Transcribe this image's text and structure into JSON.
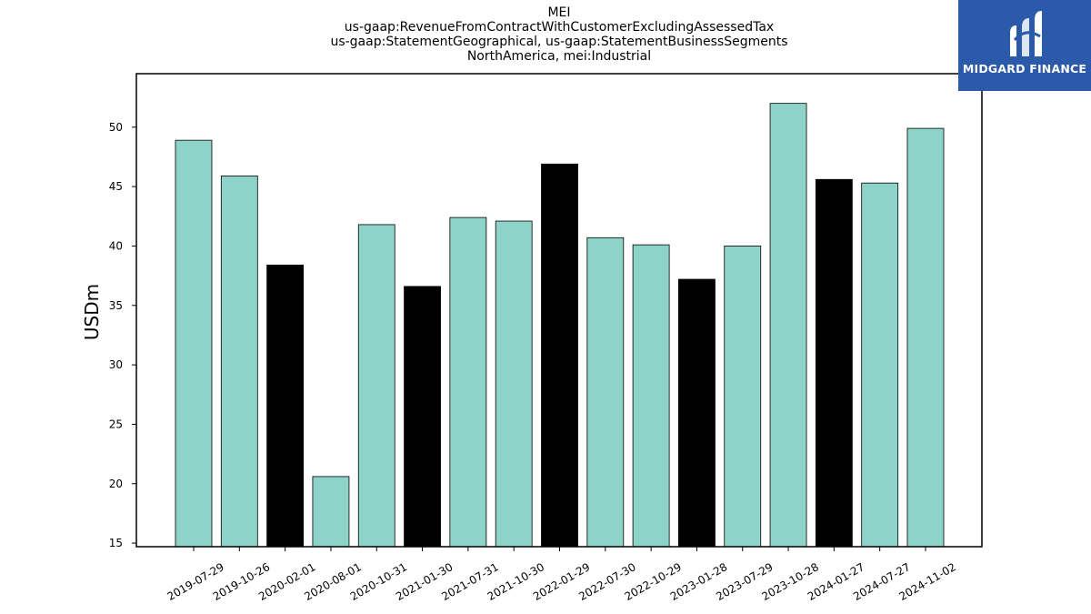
{
  "title_lines": [
    "MEI",
    "us-gaap:RevenueFromContractWithCustomerExcludingAssessedTax",
    "us-gaap:StatementGeographical, us-gaap:StatementBusinessSegments",
    "NorthAmerica, mei:Industrial"
  ],
  "logo": {
    "text": "MIDGARD FINANCE",
    "color": "#2b5aab"
  },
  "colors": {
    "bar_teal": "#8dd3c7",
    "bar_black": "#000000",
    "edge": "#000000"
  },
  "chart_data": {
    "type": "bar",
    "ylabel": "USDm",
    "xlabel": "",
    "ylim": [
      14.7,
      54.5
    ],
    "yticks": [
      15,
      20,
      25,
      30,
      35,
      40,
      45,
      50
    ],
    "grid": false,
    "categories": [
      "2019-07-29",
      "2019-10-26",
      "2020-02-01",
      "2020-08-01",
      "2020-10-31",
      "2021-01-30",
      "2021-07-31",
      "2021-10-30",
      "2022-01-29",
      "2022-07-30",
      "2022-10-29",
      "2023-01-28",
      "2023-07-29",
      "2023-10-28",
      "2024-01-27",
      "2024-07-27",
      "2024-11-02"
    ],
    "values": [
      48.9,
      45.9,
      38.4,
      20.6,
      41.8,
      36.6,
      42.4,
      42.1,
      46.9,
      40.7,
      40.1,
      37.2,
      40.0,
      52.0,
      45.6,
      45.3,
      49.9
    ],
    "bar_colors": [
      "teal",
      "teal",
      "black",
      "teal",
      "teal",
      "black",
      "teal",
      "teal",
      "black",
      "teal",
      "teal",
      "black",
      "teal",
      "teal",
      "black",
      "teal",
      "teal"
    ]
  }
}
